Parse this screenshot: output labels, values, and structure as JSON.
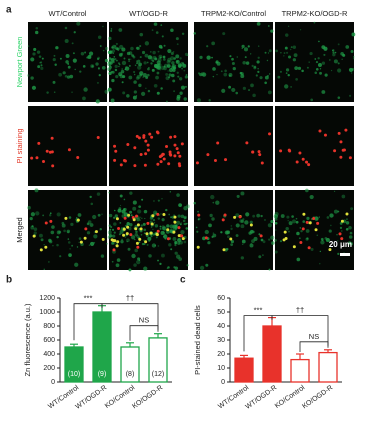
{
  "panel_a": {
    "label": "a",
    "columns": [
      "WT/Control",
      "WT/OGD-R",
      "TRPM2-KO/Control",
      "TRPM2-KO/OGD-R"
    ],
    "rows": [
      "Newport Green",
      "PI staining",
      "Merged"
    ],
    "scale_bar": "20 μm"
  },
  "chart_data": [
    {
      "type": "bar",
      "panel_label": "b",
      "y_label": "Zn fluorescence (a.u.)",
      "categories": [
        "WT/Control",
        "WT/OGD-R",
        "KO/Control",
        "KO/OGD-R"
      ],
      "values": [
        500,
        1000,
        500,
        630
      ],
      "errors": [
        40,
        90,
        60,
        60
      ],
      "filled": [
        true,
        true,
        false,
        false
      ],
      "color": "#1fa64a",
      "n_labels": [
        "(10)",
        "(9)",
        "(8)",
        "(12)"
      ],
      "significance": [
        "***",
        "††",
        "NS"
      ],
      "ylim": [
        0,
        1200
      ],
      "yticks": [
        0,
        200,
        400,
        600,
        800,
        1000,
        1200
      ]
    },
    {
      "type": "bar",
      "panel_label": "c",
      "y_label": "PI-stained dead cells",
      "categories": [
        "WT/Control",
        "WT/OGD-R",
        "KO/Control",
        "KO/OGD-R"
      ],
      "values": [
        17,
        40,
        16,
        21
      ],
      "errors": [
        2,
        6,
        4,
        2
      ],
      "filled": [
        true,
        true,
        false,
        false
      ],
      "color": "#e8322b",
      "significance": [
        "***",
        "††",
        "NS"
      ],
      "ylim": [
        0,
        60
      ],
      "yticks": [
        0,
        10,
        20,
        30,
        40,
        50,
        60
      ]
    }
  ]
}
